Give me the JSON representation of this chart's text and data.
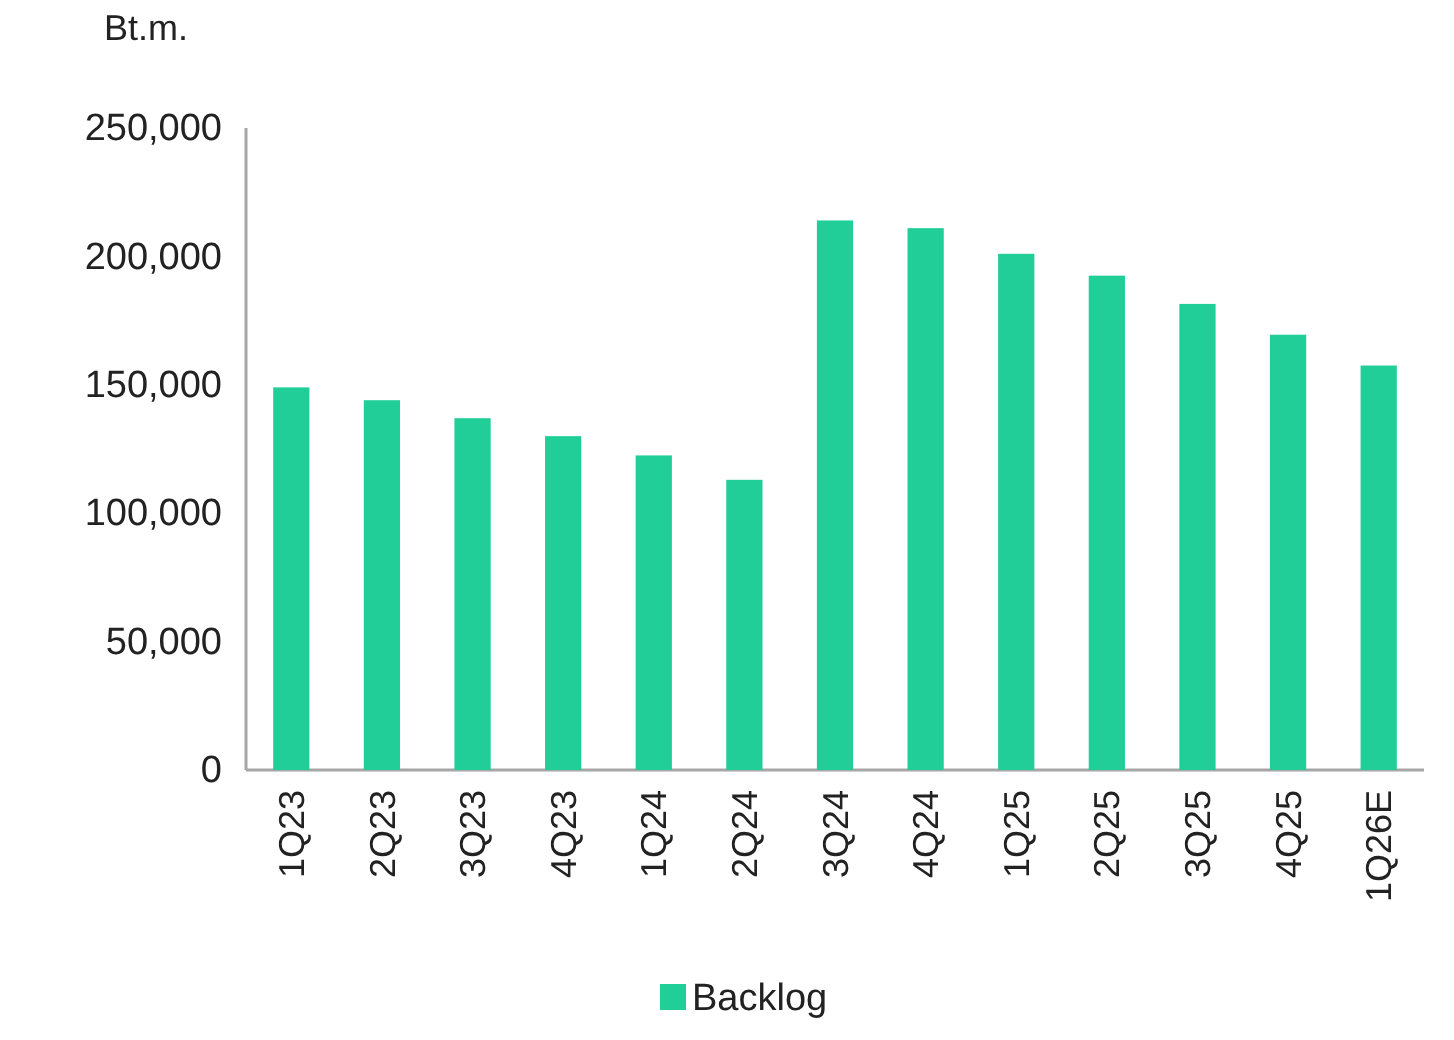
{
  "chart_data": {
    "type": "bar",
    "ylabel": "Bt.m.",
    "categories": [
      "1Q23",
      "2Q23",
      "3Q23",
      "4Q23",
      "1Q24",
      "2Q24",
      "3Q24",
      "4Q24",
      "1Q25",
      "2Q25",
      "3Q25",
      "4Q25",
      "1Q26E"
    ],
    "series": [
      {
        "name": "Backlog",
        "color": "#22ce97",
        "values": [
          149000,
          144000,
          137000,
          130000,
          122500,
          113000,
          214000,
          211000,
          201000,
          192500,
          181500,
          169500,
          157500
        ]
      }
    ],
    "ylim": [
      0,
      250000
    ],
    "yticks": [
      {
        "value": 0,
        "label": "0"
      },
      {
        "value": 50000,
        "label": "50,000"
      },
      {
        "value": 100000,
        "label": "100,000"
      },
      {
        "value": 150000,
        "label": "150,000"
      },
      {
        "value": 200000,
        "label": "200,000"
      },
      {
        "value": 250000,
        "label": "250,000"
      }
    ],
    "grid": false,
    "legend": "bottom"
  }
}
